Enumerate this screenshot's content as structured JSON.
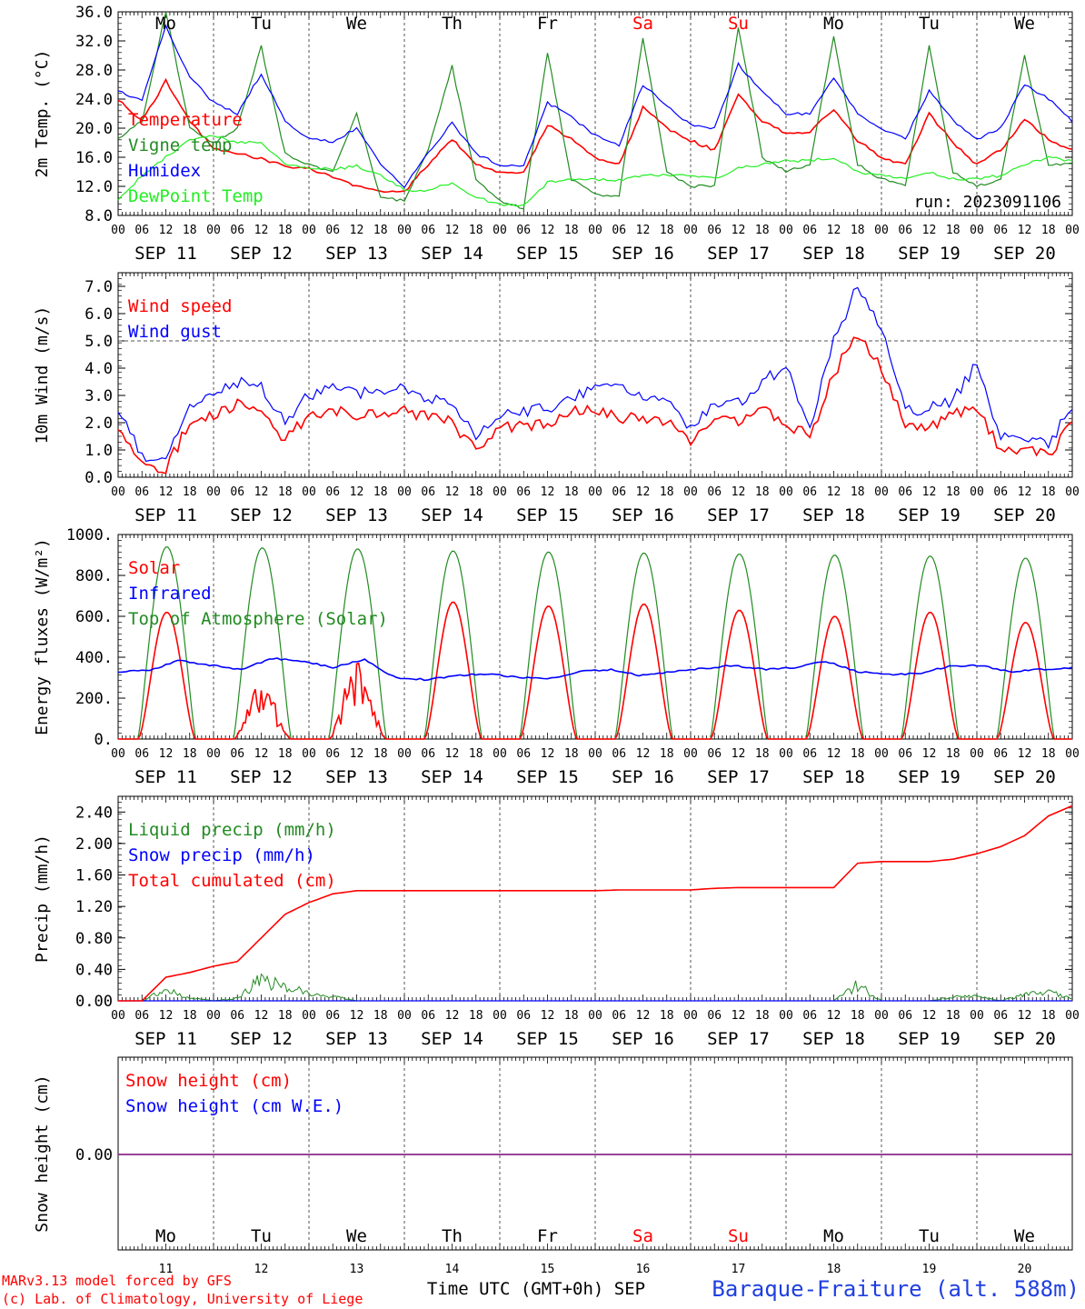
{
  "chart_data": [
    {
      "type": "line",
      "ylabel": "2m Temp. (°C)",
      "ylim": [
        8,
        36
      ],
      "yticks": [
        "8.0",
        "12.0",
        "16.0",
        "20.0",
        "24.0",
        "28.0",
        "32.0",
        "36.0"
      ],
      "x_hours": [
        0,
        6,
        12,
        18,
        24,
        30,
        36,
        42,
        48,
        54,
        60,
        66,
        72,
        78,
        84,
        90,
        96,
        102,
        108,
        114,
        120,
        126,
        132,
        138,
        144,
        150,
        156,
        162,
        168,
        174,
        180,
        186,
        192,
        198,
        204,
        210,
        216,
        222,
        228,
        234,
        240
      ],
      "run_label": "run: 2023091106",
      "series": [
        {
          "name": "Temperature",
          "color": "#ff0000",
          "values": [
            24.0,
            21.0,
            26.5,
            21.0,
            17.2,
            16.5,
            15.8,
            14.8,
            14.5,
            13.2,
            12.0,
            11.2,
            11.2,
            15.0,
            18.5,
            15.0,
            14.0,
            13.8,
            20.5,
            18.5,
            16.0,
            15.0,
            22.8,
            20.0,
            18.3,
            17.0,
            24.5,
            21.0,
            19.3,
            19.5,
            22.7,
            18.3,
            16.0,
            15.0,
            22.0,
            18.0,
            15.0,
            17.0,
            21.2,
            18.5,
            17.0
          ]
        },
        {
          "name": "Vigne temp",
          "color": "#228b22",
          "values": [
            18.5,
            21.0,
            36.0,
            20.0,
            18.0,
            20.0,
            31.2,
            16.5,
            15.0,
            14.0,
            22.0,
            10.5,
            10.0,
            17.0,
            28.5,
            13.0,
            10.0,
            9.0,
            30.5,
            13.0,
            11.0,
            10.5,
            32.5,
            14.0,
            12.0,
            12.0,
            34.0,
            16.0,
            14.0,
            15.0,
            32.7,
            15.0,
            13.0,
            12.0,
            31.5,
            14.0,
            12.0,
            13.0,
            30.0,
            15.0,
            15.0
          ]
        },
        {
          "name": "Humidex",
          "color": "#0000ff",
          "values": [
            25.0,
            24.0,
            34.0,
            27.0,
            23.5,
            22.0,
            27.5,
            21.0,
            18.5,
            18.2,
            20.0,
            15.0,
            12.0,
            16.5,
            20.8,
            16.5,
            15.0,
            14.8,
            23.5,
            21.5,
            19.0,
            17.5,
            26.0,
            23.0,
            20.5,
            20.0,
            28.8,
            25.0,
            22.0,
            22.0,
            26.8,
            22.0,
            20.0,
            18.5,
            25.2,
            21.0,
            18.5,
            20.0,
            26.0,
            24.0,
            21.0
          ]
        },
        {
          "name": "DewPoint Temp",
          "color": "#22ee22",
          "values": [
            10.0,
            13.5,
            16.0,
            18.5,
            19.0,
            18.0,
            18.0,
            15.0,
            14.5,
            14.3,
            14.8,
            13.5,
            11.5,
            11.5,
            12.5,
            10.5,
            9.5,
            9.3,
            12.5,
            13.0,
            13.0,
            12.8,
            13.5,
            13.5,
            13.5,
            13.0,
            14.5,
            15.0,
            15.5,
            15.5,
            16.0,
            14.0,
            13.5,
            13.0,
            14.0,
            13.0,
            13.0,
            13.5,
            15.0,
            16.0,
            15.5
          ]
        }
      ]
    },
    {
      "type": "line",
      "ylabel": "10m Wind (m/s)",
      "ylim": [
        0,
        7.5
      ],
      "yticks": [
        "0.0",
        "1.0",
        "2.0",
        "3.0",
        "4.0",
        "5.0",
        "6.0",
        "7.0"
      ],
      "ref_line": 5.0,
      "x_hours": [
        0,
        6,
        12,
        18,
        24,
        30,
        36,
        42,
        48,
        54,
        60,
        66,
        72,
        78,
        84,
        90,
        96,
        102,
        108,
        114,
        120,
        126,
        132,
        138,
        144,
        150,
        156,
        162,
        168,
        174,
        180,
        186,
        192,
        198,
        204,
        210,
        216,
        222,
        228,
        234,
        240
      ],
      "series": [
        {
          "name": "Wind speed",
          "color": "#ff0000",
          "values": [
            1.6,
            0.5,
            0.3,
            2.0,
            2.2,
            2.7,
            2.3,
            1.4,
            2.2,
            2.4,
            2.3,
            2.4,
            2.4,
            2.2,
            2.0,
            1.0,
            1.8,
            1.9,
            2.0,
            2.4,
            2.5,
            2.2,
            2.2,
            2.1,
            1.2,
            2.0,
            2.1,
            2.6,
            2.0,
            1.5,
            3.8,
            5.3,
            4.0,
            2.0,
            1.8,
            2.3,
            2.5,
            1.0,
            1.1,
            0.8,
            2.0
          ]
        },
        {
          "name": "Wind gust",
          "color": "#0000ff",
          "values": [
            2.4,
            0.8,
            0.6,
            2.6,
            3.0,
            3.5,
            3.3,
            2.1,
            3.0,
            3.3,
            3.1,
            3.2,
            3.2,
            2.9,
            2.6,
            1.5,
            2.3,
            2.4,
            2.5,
            2.9,
            3.2,
            3.4,
            2.9,
            2.8,
            1.8,
            2.6,
            2.7,
            3.5,
            4.1,
            1.8,
            5.0,
            7.0,
            5.5,
            2.5,
            2.5,
            2.8,
            4.2,
            1.5,
            1.3,
            1.2,
            2.6
          ]
        }
      ]
    },
    {
      "type": "line",
      "ylabel": "Energy fluxes (W/m²)",
      "ylim": [
        0,
        1000
      ],
      "yticks": [
        "0.",
        "200.",
        "400.",
        "600.",
        "800.",
        "1000."
      ],
      "series": [
        {
          "name": "Solar",
          "color": "#ff0000",
          "peaks": [
            620,
            280,
            390,
            670,
            650,
            660,
            630,
            600,
            620,
            570
          ]
        },
        {
          "name": "Infrared",
          "color": "#0000ff",
          "values": [
            330,
            335,
            385,
            360,
            340,
            395,
            380,
            350,
            390,
            300,
            290,
            310,
            320,
            300,
            295,
            330,
            340,
            310,
            330,
            345,
            360,
            340,
            350,
            380,
            330,
            315,
            320,
            355,
            360,
            330,
            340,
            350
          ]
        },
        {
          "name": "Top of Atmosphere (Solar)",
          "color": "#228b22",
          "peaks": [
            940,
            935,
            930,
            920,
            915,
            910,
            905,
            900,
            895,
            885
          ]
        }
      ]
    },
    {
      "type": "line",
      "ylabel": "Precip (mm/h)",
      "ylim": [
        0,
        2.6
      ],
      "yticks": [
        "0.00",
        "0.40",
        "0.80",
        "1.20",
        "1.60",
        "2.00",
        "2.40"
      ],
      "x_hours": [
        0,
        6,
        12,
        18,
        24,
        30,
        36,
        42,
        48,
        54,
        60,
        66,
        72,
        78,
        84,
        90,
        96,
        102,
        108,
        114,
        120,
        126,
        132,
        138,
        144,
        150,
        156,
        162,
        168,
        174,
        180,
        186,
        192,
        198,
        204,
        210,
        216,
        222,
        228,
        234,
        240
      ],
      "series": [
        {
          "name": "Liquid precip (mm/h)",
          "color": "#228b22",
          "values": [
            0,
            0,
            0.2,
            0.05,
            0,
            0.05,
            0.38,
            0.28,
            0.12,
            0.08,
            0,
            0,
            0,
            0,
            0,
            0,
            0,
            0,
            0,
            0,
            0,
            0,
            0,
            0,
            0,
            0,
            0,
            0,
            0,
            0,
            0,
            0.28,
            0,
            0,
            0,
            0.07,
            0.08,
            0,
            0.12,
            0.15,
            0.05
          ]
        },
        {
          "name": "Snow precip (mm/h)",
          "color": "#0000ff",
          "values": [
            0,
            0,
            0,
            0,
            0,
            0,
            0,
            0,
            0,
            0,
            0,
            0,
            0,
            0,
            0,
            0,
            0,
            0,
            0,
            0,
            0,
            0,
            0,
            0,
            0,
            0,
            0,
            0,
            0,
            0,
            0,
            0,
            0,
            0,
            0,
            0,
            0,
            0,
            0,
            0,
            0
          ]
        },
        {
          "name": "Total cumulated (cm)",
          "color": "#ff0000",
          "values": [
            0,
            0,
            0.3,
            0.36,
            0.44,
            0.5,
            0.8,
            1.1,
            1.25,
            1.36,
            1.4,
            1.4,
            1.4,
            1.4,
            1.4,
            1.4,
            1.4,
            1.4,
            1.4,
            1.4,
            1.4,
            1.41,
            1.41,
            1.41,
            1.41,
            1.43,
            1.44,
            1.44,
            1.44,
            1.44,
            1.44,
            1.75,
            1.77,
            1.77,
            1.77,
            1.8,
            1.87,
            1.96,
            2.1,
            2.35,
            2.48
          ]
        }
      ]
    },
    {
      "type": "line",
      "ylabel": "Snow height (cm)",
      "yticks": [
        "0.00"
      ],
      "series": [
        {
          "name": "Snow height (cm)",
          "color": "#ff0000",
          "values": [
            0,
            0
          ]
        },
        {
          "name": "Snow height (cm W.E.)",
          "color": "#0000ff",
          "values": [
            0,
            0
          ]
        }
      ]
    }
  ],
  "days": [
    {
      "dow": "Mo",
      "date": "SEP 11",
      "num": "11",
      "color": "#000000"
    },
    {
      "dow": "Tu",
      "date": "SEP 12",
      "num": "12",
      "color": "#000000"
    },
    {
      "dow": "We",
      "date": "SEP 13",
      "num": "13",
      "color": "#000000"
    },
    {
      "dow": "Th",
      "date": "SEP 14",
      "num": "14",
      "color": "#000000"
    },
    {
      "dow": "Fr",
      "date": "SEP 15",
      "num": "15",
      "color": "#000000"
    },
    {
      "dow": "Sa",
      "date": "SEP 16",
      "num": "16",
      "color": "#ff0000"
    },
    {
      "dow": "Su",
      "date": "SEP 17",
      "num": "17",
      "color": "#ff0000"
    },
    {
      "dow": "Mo",
      "date": "SEP 18",
      "num": "18",
      "color": "#000000"
    },
    {
      "dow": "Tu",
      "date": "SEP 19",
      "num": "19",
      "color": "#000000"
    },
    {
      "dow": "We",
      "date": "SEP 20",
      "num": "20",
      "color": "#000000"
    }
  ],
  "hour_ticks": [
    "00",
    "06",
    "12",
    "18"
  ],
  "final_hour_tick": "00",
  "footer": {
    "credit_line1": "MARv3.13 model forced by GFS",
    "credit_line2": "(c) Lab. of Climatology, University of Liege",
    "xlabel": "Time UTC (GMT+0h) SEP",
    "station": "Baraque-Fraiture (alt. 588m)"
  }
}
